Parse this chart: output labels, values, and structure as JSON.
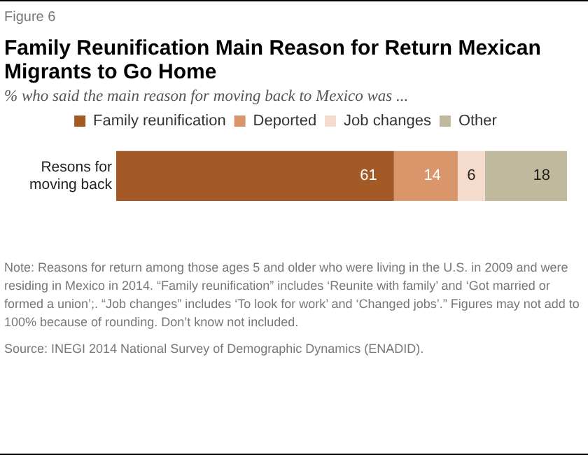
{
  "chart_data": {
    "type": "bar",
    "orientation": "horizontal",
    "stacked": true,
    "title": "Family Reunification Main Reason for Return Mexican Migrants to Go Home",
    "subtitle": "% who said the main reason for moving back to Mexico was ...",
    "categories": [
      "Resons for\nmoving back"
    ],
    "series": [
      {
        "name": "Family reunification",
        "color": "#a35a26",
        "values": [
          61
        ]
      },
      {
        "name": "Deported",
        "color": "#d9966a",
        "values": [
          14
        ]
      },
      {
        "name": "Job changes",
        "color": "#f5dbcc",
        "values": [
          6
        ]
      },
      {
        "name": "Other",
        "color": "#c1b99d",
        "values": [
          18
        ]
      }
    ],
    "data_labels": true,
    "legend": "top",
    "grid": false,
    "tick_labels": "y",
    "annotations": [
      "Figure 6",
      "Note: Reasons for return among those ages 5 and older who were living in the U.S. in 2009 and were residing in Mexico in 2014. “Family reunification” includes ‘Reunite with family’ and ‘Got married or formed a union’;. “Job changes” includes ‘To look for work’ and ‘Changed jobs’.” Figures may not add to 100% because of rounding. Don’t know not included.",
      "Source: INEGI 2014 National Survey of Demographic Dynamics (ENADID)."
    ]
  }
}
